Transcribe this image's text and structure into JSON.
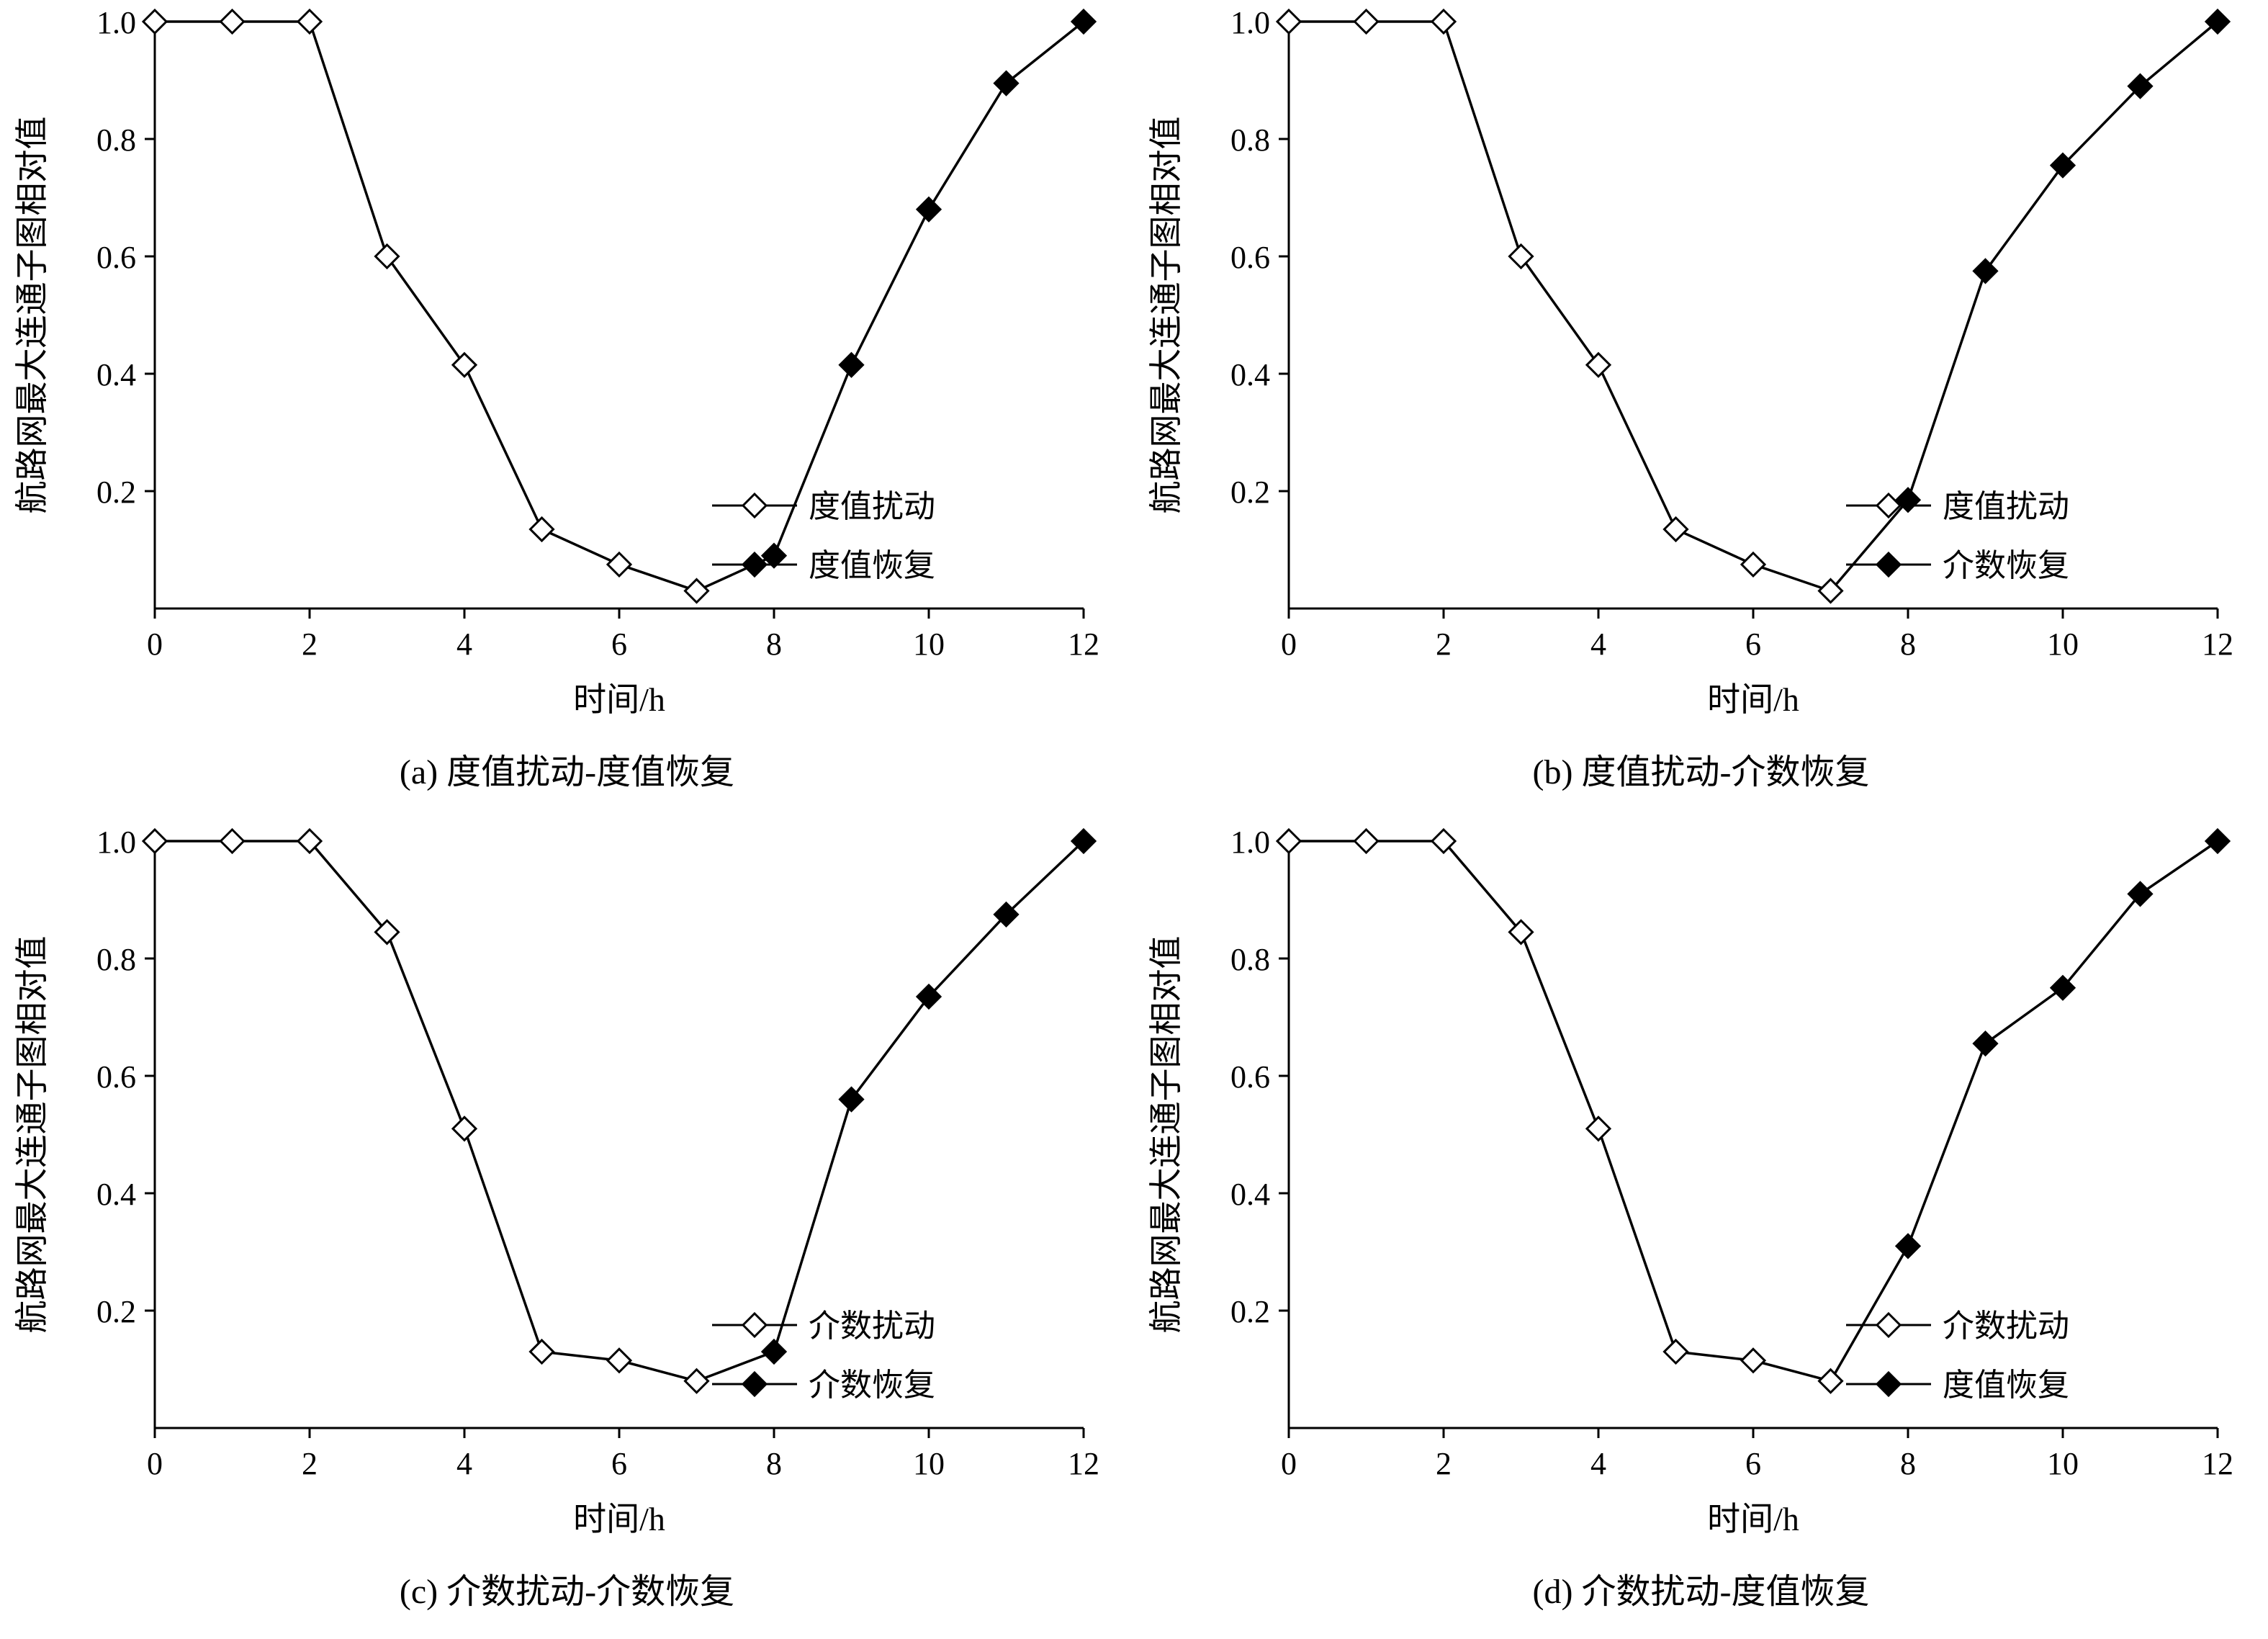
{
  "colors": {
    "ink": "#000000",
    "background": "#ffffff",
    "open_marker_fill": "#ffffff"
  },
  "chart_data": [
    {
      "id": "a",
      "type": "line",
      "caption": "(a) 度值扰动-度值恢复",
      "xlabel": "时间/h",
      "ylabel": "航路网最大连通子图相对值",
      "xlim": [
        0,
        12
      ],
      "ylim": [
        0,
        1.0
      ],
      "xticks": [
        0,
        2,
        4,
        6,
        8,
        10,
        12
      ],
      "yticks": [
        0.2,
        0.4,
        0.6,
        0.8,
        1.0
      ],
      "legend_position": "lower right",
      "grid": false,
      "series": [
        {
          "name": "度值扰动",
          "marker": "open-diamond",
          "x": [
            0,
            1,
            2,
            3,
            4,
            5,
            6,
            7
          ],
          "values": [
            1.0,
            1.0,
            1.0,
            0.6,
            0.415,
            0.135,
            0.075,
            0.03
          ]
        },
        {
          "name": "度值恢复",
          "marker": "filled-diamond",
          "x": [
            7,
            8,
            9,
            10,
            11,
            12
          ],
          "values": [
            0.03,
            0.09,
            0.415,
            0.68,
            0.895,
            1.0
          ],
          "skip_first_marker": true
        }
      ]
    },
    {
      "id": "b",
      "type": "line",
      "caption": "(b) 度值扰动-介数恢复",
      "xlabel": "时间/h",
      "ylabel": "航路网最大连通子图相对值",
      "xlim": [
        0,
        12
      ],
      "ylim": [
        0,
        1.0
      ],
      "xticks": [
        0,
        2,
        4,
        6,
        8,
        10,
        12
      ],
      "yticks": [
        0.2,
        0.4,
        0.6,
        0.8,
        1.0
      ],
      "legend_position": "lower right",
      "grid": false,
      "series": [
        {
          "name": "度值扰动",
          "marker": "open-diamond",
          "x": [
            0,
            1,
            2,
            3,
            4,
            5,
            6,
            7
          ],
          "values": [
            1.0,
            1.0,
            1.0,
            0.6,
            0.415,
            0.135,
            0.075,
            0.03
          ]
        },
        {
          "name": "介数恢复",
          "marker": "filled-diamond",
          "x": [
            7,
            8,
            9,
            10,
            11,
            12
          ],
          "values": [
            0.03,
            0.185,
            0.575,
            0.755,
            0.89,
            1.0
          ],
          "skip_first_marker": true
        }
      ]
    },
    {
      "id": "c",
      "type": "line",
      "caption": "(c) 介数扰动-介数恢复",
      "xlabel": "时间/h",
      "ylabel": "航路网最大连通子图相对值",
      "xlim": [
        0,
        12
      ],
      "ylim": [
        0,
        1.0
      ],
      "xticks": [
        0,
        2,
        4,
        6,
        8,
        10,
        12
      ],
      "yticks": [
        0.2,
        0.4,
        0.6,
        0.8,
        1.0
      ],
      "legend_position": "lower right",
      "grid": false,
      "series": [
        {
          "name": "介数扰动",
          "marker": "open-diamond",
          "x": [
            0,
            1,
            2,
            3,
            4,
            5,
            6,
            7
          ],
          "values": [
            1.0,
            1.0,
            1.0,
            0.845,
            0.51,
            0.13,
            0.115,
            0.08
          ]
        },
        {
          "name": "介数恢复",
          "marker": "filled-diamond",
          "x": [
            7,
            8,
            9,
            10,
            11,
            12
          ],
          "values": [
            0.08,
            0.13,
            0.56,
            0.735,
            0.875,
            1.0
          ],
          "skip_first_marker": true
        }
      ]
    },
    {
      "id": "d",
      "type": "line",
      "caption": "(d) 介数扰动-度值恢复",
      "xlabel": "时间/h",
      "ylabel": "航路网最大连通子图相对值",
      "xlim": [
        0,
        12
      ],
      "ylim": [
        0,
        1.0
      ],
      "xticks": [
        0,
        2,
        4,
        6,
        8,
        10,
        12
      ],
      "yticks": [
        0.2,
        0.4,
        0.6,
        0.8,
        1.0
      ],
      "legend_position": "lower right",
      "grid": false,
      "series": [
        {
          "name": "介数扰动",
          "marker": "open-diamond",
          "x": [
            0,
            1,
            2,
            3,
            4,
            5,
            6,
            7
          ],
          "values": [
            1.0,
            1.0,
            1.0,
            0.845,
            0.51,
            0.13,
            0.115,
            0.08
          ]
        },
        {
          "name": "度值恢复",
          "marker": "filled-diamond",
          "x": [
            7,
            8,
            9,
            10,
            11,
            12
          ],
          "values": [
            0.08,
            0.31,
            0.655,
            0.75,
            0.91,
            1.0
          ],
          "skip_first_marker": true
        }
      ]
    }
  ]
}
